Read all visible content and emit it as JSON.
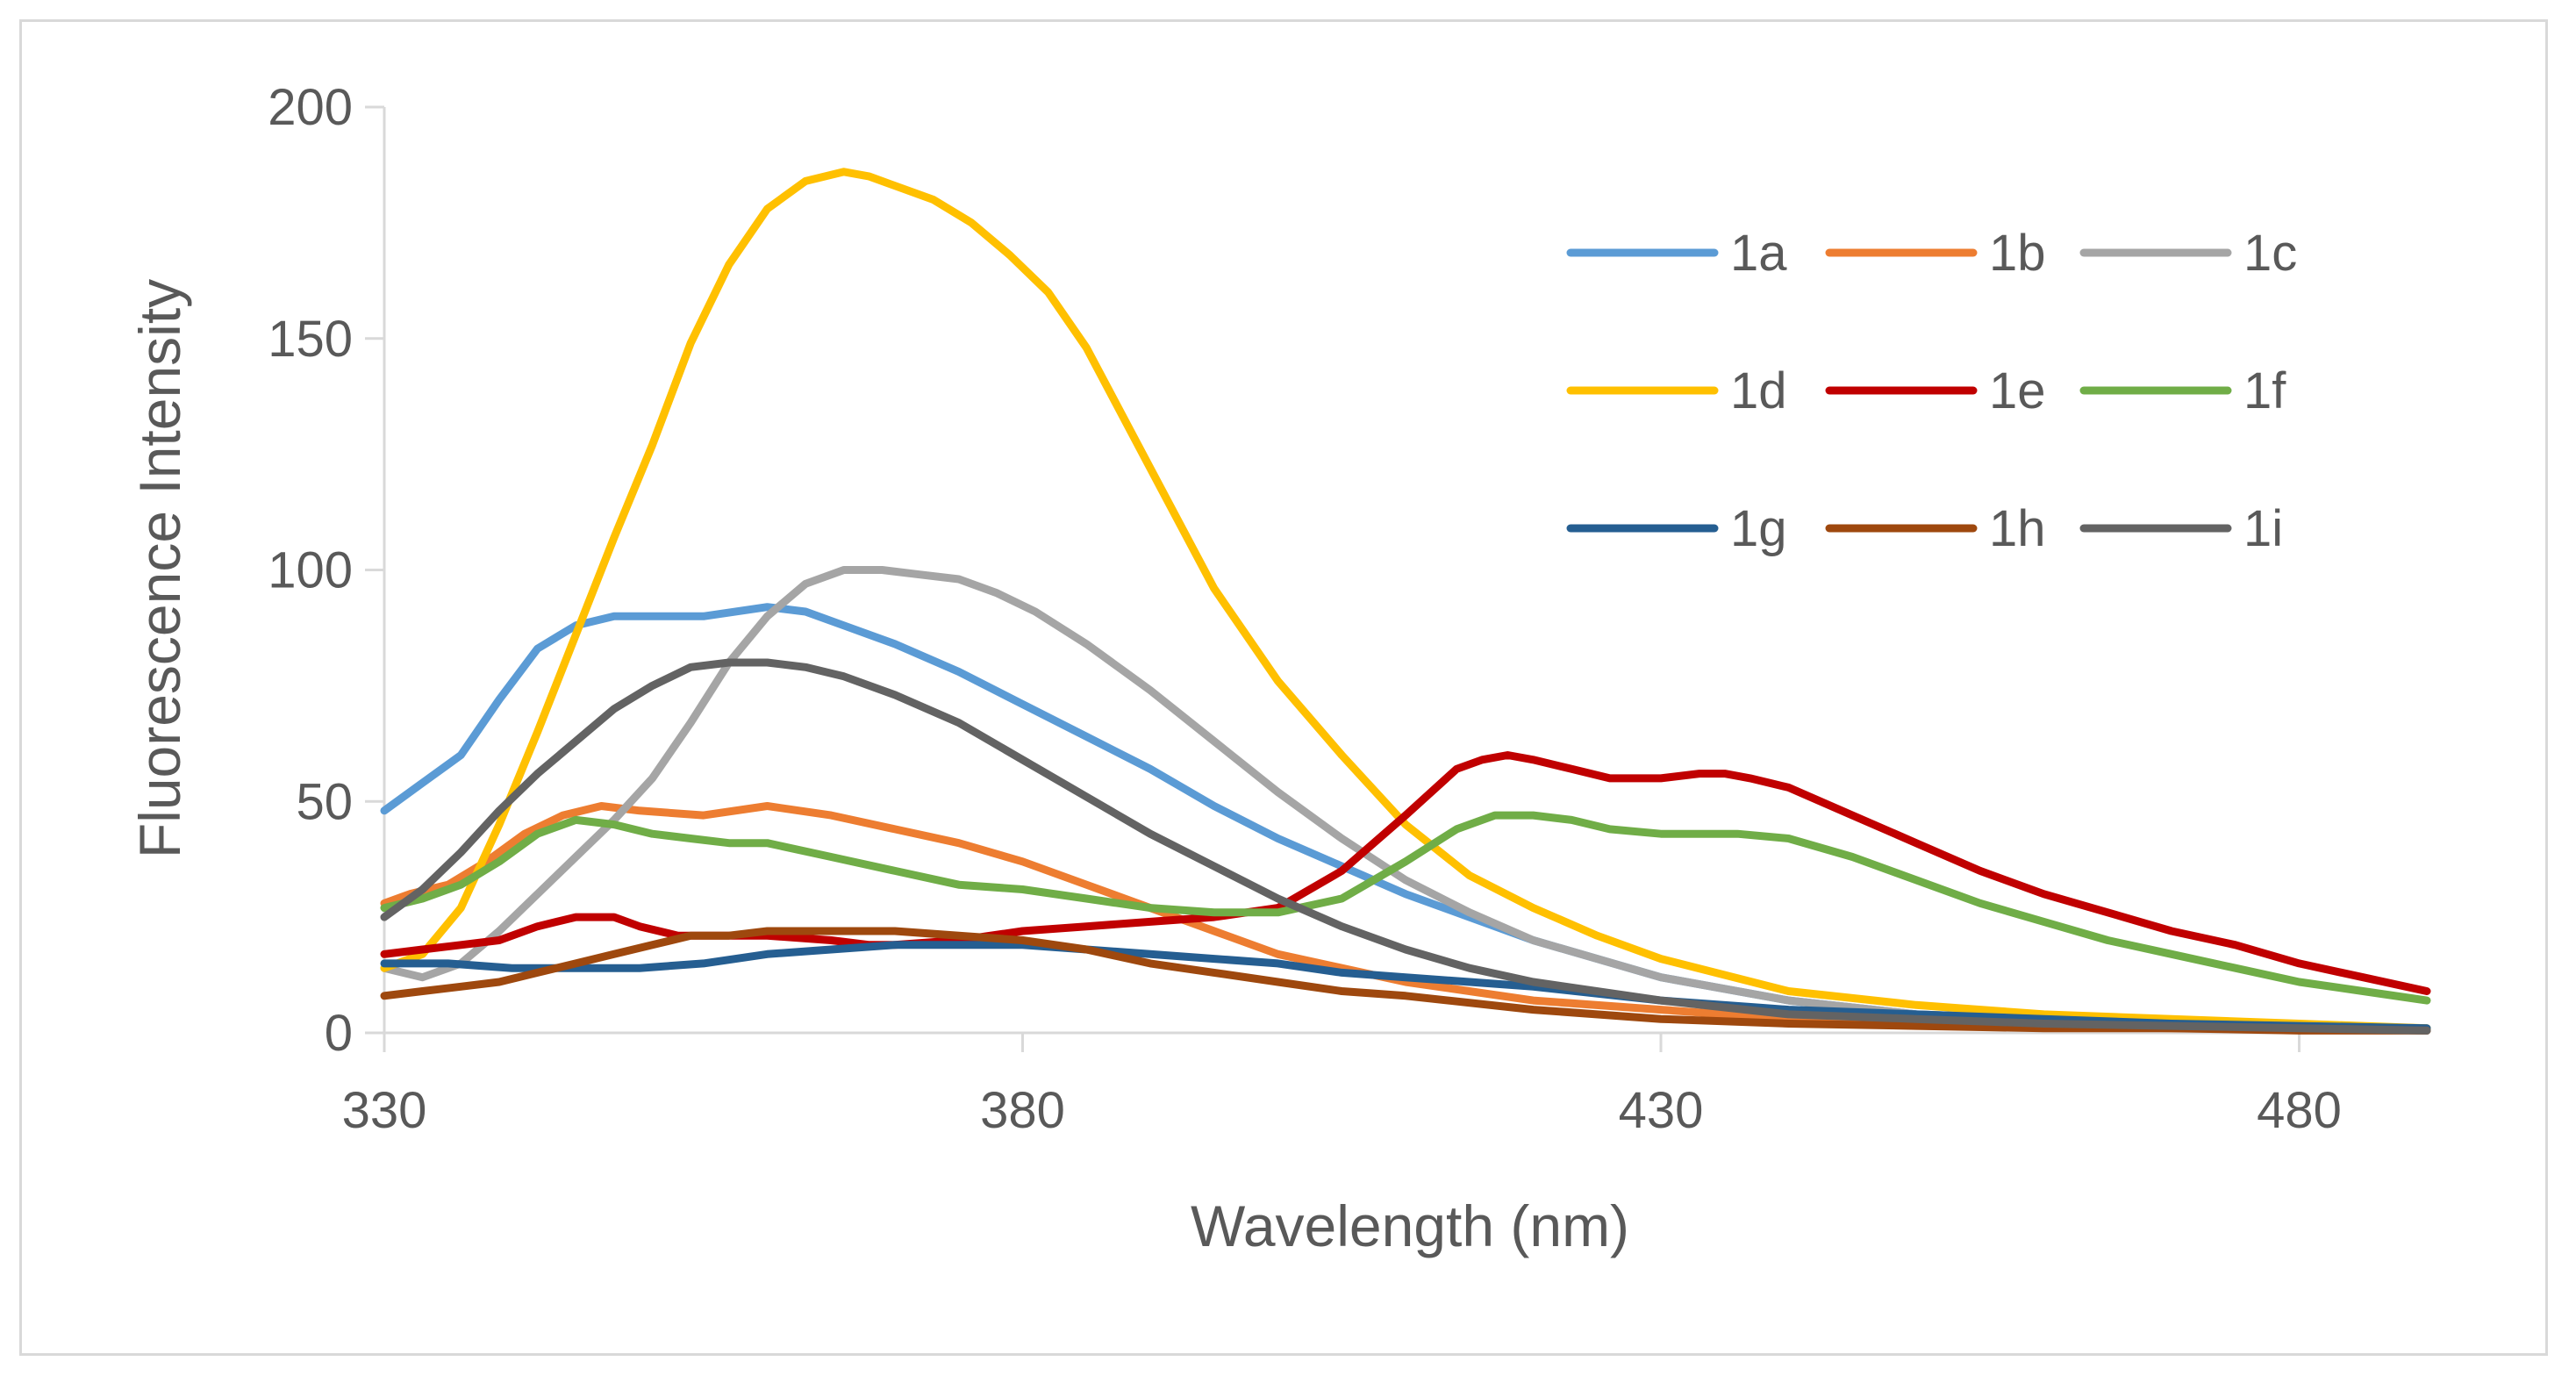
{
  "chart_data": {
    "type": "line",
    "title": "",
    "xlabel": "Wavelength (nm)",
    "ylabel": "Fluorescence Intensity",
    "xlim": [
      330,
      490
    ],
    "ylim": [
      0,
      200
    ],
    "x_ticks": [
      "330",
      "380",
      "430",
      "480"
    ],
    "y_ticks": [
      "0",
      "50",
      "100",
      "150",
      "200"
    ],
    "grid": false,
    "legend_position": "top-right",
    "series": [
      {
        "name": "1a",
        "color": "#5b9bd5",
        "x": [
          330,
          333,
          336,
          339,
          342,
          345,
          348,
          350,
          355,
          360,
          363,
          366,
          370,
          375,
          380,
          385,
          390,
          395,
          400,
          405,
          410,
          415,
          420,
          430,
          440,
          450,
          460,
          470,
          480,
          490
        ],
        "y": [
          48,
          54,
          60,
          72,
          83,
          88,
          90,
          90,
          90,
          92,
          91,
          88,
          84,
          78,
          71,
          64,
          57,
          49,
          42,
          36,
          30,
          25,
          20,
          12,
          7,
          4,
          3,
          2,
          1.5,
          1
        ]
      },
      {
        "name": "1b",
        "color": "#ed7d31",
        "x": [
          330,
          332,
          335,
          338,
          341,
          344,
          347,
          350,
          355,
          360,
          365,
          370,
          375,
          380,
          385,
          390,
          395,
          400,
          410,
          420,
          430,
          440,
          450,
          460,
          470,
          480,
          490
        ],
        "y": [
          28,
          30,
          32,
          37,
          43,
          47,
          49,
          48,
          47,
          49,
          47,
          44,
          41,
          37,
          32,
          27,
          22,
          17,
          11,
          7,
          5,
          3,
          2,
          1.5,
          1,
          1,
          0.5
        ]
      },
      {
        "name": "1c",
        "color": "#a5a5a5",
        "x": [
          330,
          333,
          336,
          339,
          342,
          345,
          348,
          351,
          354,
          357,
          360,
          363,
          366,
          369,
          372,
          375,
          378,
          381,
          385,
          390,
          395,
          400,
          405,
          410,
          415,
          420,
          430,
          440,
          450,
          460,
          470,
          480,
          490
        ],
        "y": [
          14,
          12,
          15,
          22,
          30,
          38,
          46,
          55,
          67,
          80,
          90,
          97,
          100,
          100,
          99,
          98,
          95,
          91,
          84,
          74,
          63,
          52,
          42,
          33,
          26,
          20,
          12,
          7,
          4,
          3,
          2,
          1.5,
          1
        ]
      },
      {
        "name": "1d",
        "color": "#ffc000",
        "x": [
          330,
          333,
          336,
          339,
          342,
          345,
          348,
          351,
          354,
          357,
          360,
          363,
          366,
          368,
          370,
          373,
          376,
          379,
          382,
          385,
          390,
          395,
          400,
          405,
          410,
          415,
          420,
          425,
          430,
          440,
          450,
          460,
          470,
          480,
          490
        ],
        "y": [
          14,
          17,
          27,
          45,
          65,
          86,
          107,
          127,
          149,
          166,
          178,
          184,
          186,
          185,
          183,
          180,
          175,
          168,
          160,
          148,
          122,
          96,
          76,
          60,
          45,
          34,
          27,
          21,
          16,
          9,
          6,
          4,
          3,
          2,
          1
        ]
      },
      {
        "name": "1e",
        "color": "#c00000",
        "x": [
          330,
          333,
          336,
          339,
          342,
          345,
          348,
          350,
          353,
          356,
          360,
          365,
          368,
          370,
          375,
          380,
          385,
          390,
          395,
          400,
          405,
          410,
          414,
          416,
          418,
          420,
          423,
          426,
          430,
          433,
          435,
          437,
          440,
          445,
          450,
          455,
          460,
          465,
          470,
          475,
          480,
          485,
          490
        ],
        "y": [
          17,
          18,
          19,
          20,
          23,
          25,
          25,
          23,
          21,
          21,
          21,
          20,
          19,
          19,
          20,
          22,
          23,
          24,
          25,
          27,
          35,
          47,
          57,
          59,
          60,
          59,
          57,
          55,
          55,
          56,
          56,
          55,
          53,
          47,
          41,
          35,
          30,
          26,
          22,
          19,
          15,
          12,
          9
        ]
      },
      {
        "name": "1f",
        "color": "#70ad47",
        "x": [
          330,
          333,
          336,
          339,
          342,
          345,
          348,
          351,
          354,
          357,
          360,
          365,
          370,
          375,
          380,
          385,
          390,
          395,
          400,
          405,
          410,
          414,
          417,
          420,
          423,
          426,
          430,
          433,
          436,
          440,
          445,
          450,
          455,
          460,
          465,
          470,
          475,
          480,
          485,
          490
        ],
        "y": [
          27,
          29,
          32,
          37,
          43,
          46,
          45,
          43,
          42,
          41,
          41,
          38,
          35,
          32,
          31,
          29,
          27,
          26,
          26,
          29,
          37,
          44,
          47,
          47,
          46,
          44,
          43,
          43,
          43,
          42,
          38,
          33,
          28,
          24,
          20,
          17,
          14,
          11,
          9,
          7
        ]
      },
      {
        "name": "1g",
        "color": "#255e91",
        "x": [
          330,
          335,
          340,
          345,
          350,
          355,
          360,
          365,
          370,
          375,
          380,
          385,
          390,
          395,
          400,
          405,
          410,
          420,
          430,
          440,
          450,
          460,
          470,
          480,
          490
        ],
        "y": [
          15,
          15,
          14,
          14,
          14,
          15,
          17,
          18,
          19,
          19,
          19,
          18,
          17,
          16,
          15,
          13,
          12,
          10,
          7,
          5,
          4,
          3,
          2,
          1.5,
          1
        ]
      },
      {
        "name": "1h",
        "color": "#9e480e",
        "x": [
          330,
          333,
          336,
          339,
          342,
          345,
          348,
          351,
          354,
          357,
          360,
          365,
          370,
          375,
          380,
          385,
          390,
          395,
          400,
          405,
          410,
          420,
          430,
          440,
          450,
          460,
          470,
          480,
          490
        ],
        "y": [
          8,
          9,
          10,
          11,
          13,
          15,
          17,
          19,
          21,
          21,
          22,
          22,
          22,
          21,
          20,
          18,
          15,
          13,
          11,
          9,
          8,
          5,
          3,
          2,
          1.5,
          1,
          1,
          0.5,
          0.5
        ]
      },
      {
        "name": "1i",
        "color": "#636363",
        "x": [
          330,
          333,
          336,
          339,
          342,
          345,
          348,
          351,
          354,
          357,
          360,
          363,
          366,
          370,
          375,
          380,
          385,
          390,
          395,
          400,
          405,
          410,
          415,
          420,
          430,
          440,
          450,
          460,
          470,
          480,
          490
        ],
        "y": [
          25,
          31,
          39,
          48,
          56,
          63,
          70,
          75,
          79,
          80,
          80,
          79,
          77,
          73,
          67,
          59,
          51,
          43,
          36,
          29,
          23,
          18,
          14,
          11,
          7,
          4,
          3,
          2,
          1.5,
          1,
          0.5
        ]
      }
    ]
  }
}
